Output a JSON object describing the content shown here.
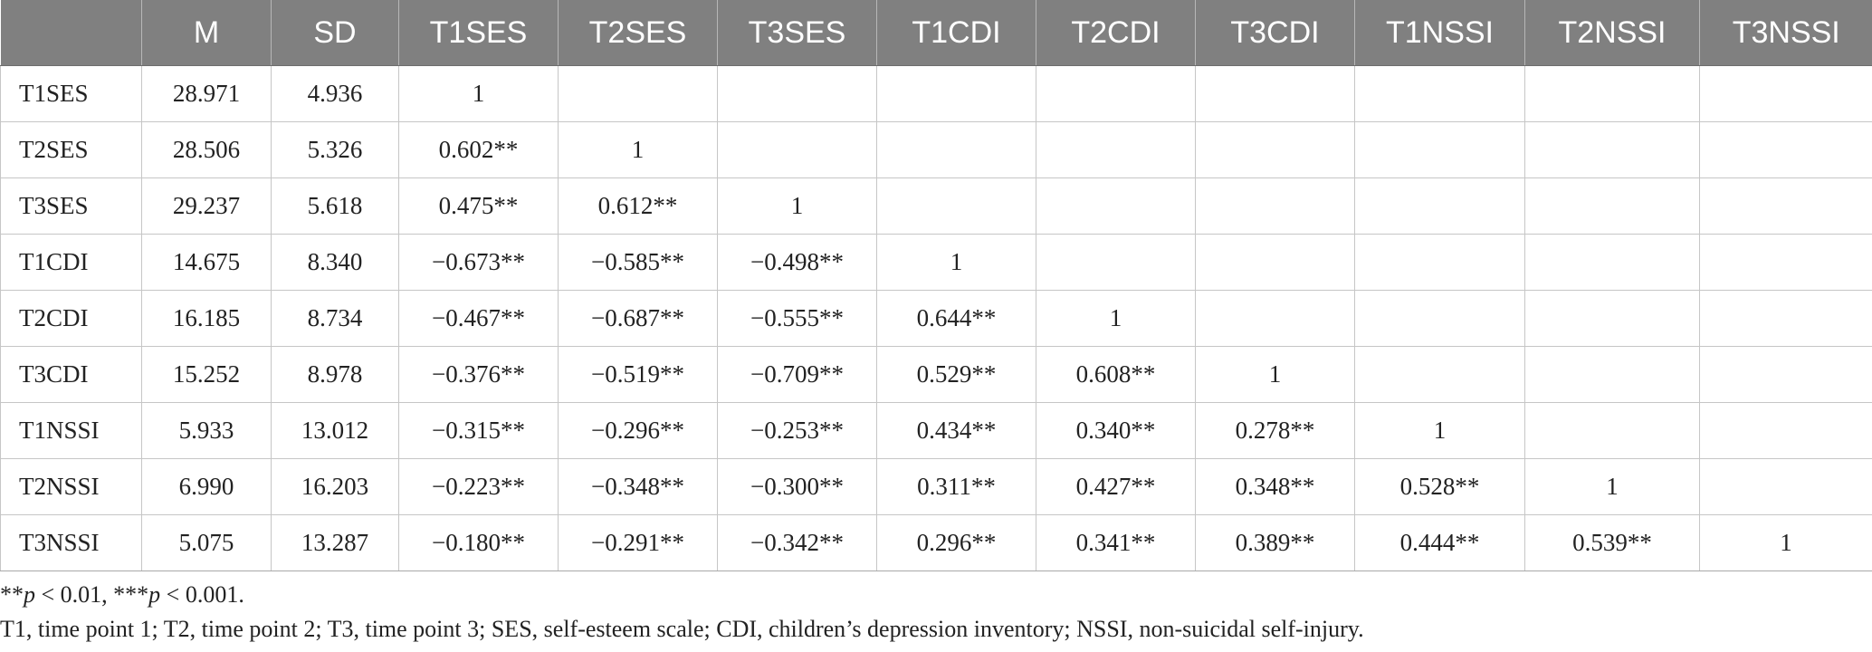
{
  "table": {
    "columns": [
      "",
      "M",
      "SD",
      "T1SES",
      "T2SES",
      "T3SES",
      "T1CDI",
      "T2CDI",
      "T3CDI",
      "T1NSSI",
      "T2NSSI",
      "T3NSSI"
    ],
    "rows": [
      [
        "T1SES",
        "28.971",
        "4.936",
        "1",
        "",
        "",
        "",
        "",
        "",
        "",
        "",
        ""
      ],
      [
        "T2SES",
        "28.506",
        "5.326",
        "0.602**",
        "1",
        "",
        "",
        "",
        "",
        "",
        "",
        ""
      ],
      [
        "T3SES",
        "29.237",
        "5.618",
        "0.475**",
        "0.612**",
        "1",
        "",
        "",
        "",
        "",
        "",
        ""
      ],
      [
        "T1CDI",
        "14.675",
        "8.340",
        "−0.673**",
        "−0.585**",
        "−0.498**",
        "1",
        "",
        "",
        "",
        "",
        ""
      ],
      [
        "T2CDI",
        "16.185",
        "8.734",
        "−0.467**",
        "−0.687**",
        "−0.555**",
        "0.644**",
        "1",
        "",
        "",
        "",
        ""
      ],
      [
        "T3CDI",
        "15.252",
        "8.978",
        "−0.376**",
        "−0.519**",
        "−0.709**",
        "0.529**",
        "0.608**",
        "1",
        "",
        "",
        ""
      ],
      [
        "T1NSSI",
        "5.933",
        "13.012",
        "−0.315**",
        "−0.296**",
        "−0.253**",
        "0.434**",
        "0.340**",
        "0.278**",
        "1",
        "",
        ""
      ],
      [
        "T2NSSI",
        "6.990",
        "16.203",
        "−0.223**",
        "−0.348**",
        "−0.300**",
        "0.311**",
        "0.427**",
        "0.348**",
        "0.528**",
        "1",
        ""
      ],
      [
        "T3NSSI",
        "5.075",
        "13.287",
        "−0.180**",
        "−0.291**",
        "−0.342**",
        "0.296**",
        "0.341**",
        "0.389**",
        "0.444**",
        "0.539**",
        "1"
      ]
    ]
  },
  "notes": {
    "significance": {
      "marker1": "**",
      "p1": "p",
      "threshold1": " < 0.01, ",
      "marker2": "***",
      "p2": "p",
      "threshold2": " < 0.001."
    },
    "abbreviations": "T1, time point 1; T2, time point 2; T3, time point 3; SES, self-esteem scale; CDI, children’s depression inventory; NSSI, non-suicidal self-injury."
  },
  "colors": {
    "header_background": "#808080",
    "header_text": "#ffffff",
    "grid_lines": "#c6c6c6",
    "body_text": "#222222"
  }
}
